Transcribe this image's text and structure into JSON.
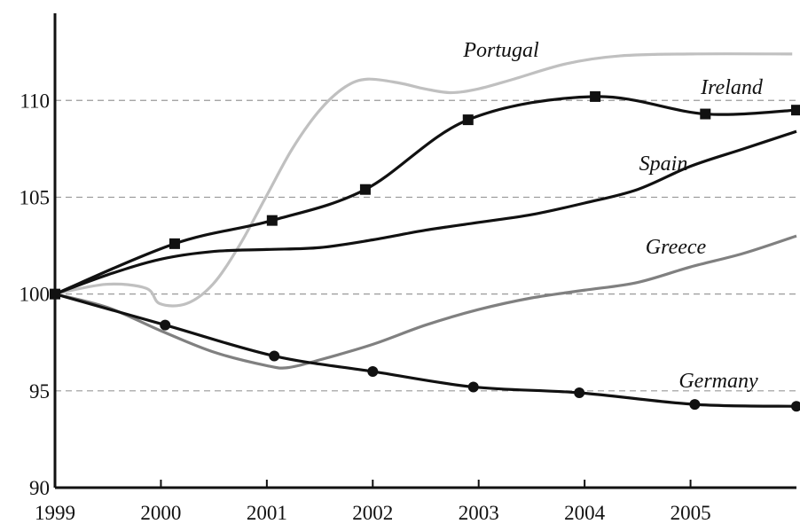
{
  "chart_data": {
    "type": "line",
    "xlim": [
      1999,
      2006
    ],
    "ylim": [
      90,
      114.5
    ],
    "xticks": [
      1999,
      2000,
      2001,
      2002,
      2003,
      2004,
      2005
    ],
    "yticks": [
      90,
      95,
      100,
      105,
      110
    ],
    "grid": true,
    "series": [
      {
        "name": "Portugal",
        "color": "#c0c0c0",
        "x": [
          1999,
          1999.48,
          1999.86,
          1999.99,
          2000.24,
          2000.49,
          2000.74,
          2000.99,
          2001.24,
          2001.5,
          2001.74,
          2001.95,
          2002.25,
          2002.49,
          2002.74,
          2003,
          2003.33,
          2003.83,
          2004.33,
          2005,
          2005.96
        ],
        "values": [
          100,
          100.5,
          100.3,
          99.5,
          99.5,
          100.5,
          102.5,
          105,
          107.5,
          109.5,
          110.7,
          111.1,
          110.9,
          110.6,
          110.4,
          110.6,
          111.1,
          111.9,
          112.3,
          112.4,
          112.4
        ]
      },
      {
        "name": "Ireland",
        "color": "#111111",
        "marker": "square",
        "x": [
          1999,
          2000.13,
          2001.05,
          2001.93,
          2002.9,
          2004.1,
          2005.14,
          2006
        ],
        "values": [
          100,
          102.6,
          103.8,
          105.4,
          109,
          110.2,
          109.3,
          109.5
        ]
      },
      {
        "name": "Spain",
        "color": "#111111",
        "x": [
          1999,
          1999.5,
          2000,
          2000.5,
          2001,
          2001.5,
          2002,
          2002.5,
          2003,
          2003.5,
          2004,
          2004.5,
          2005,
          2005.5,
          2006
        ],
        "values": [
          100,
          101,
          101.8,
          102.2,
          102.3,
          102.4,
          102.8,
          103.3,
          103.7,
          104.1,
          104.7,
          105.4,
          106.6,
          107.5,
          108.4
        ]
      },
      {
        "name": "Greece",
        "color": "#808080",
        "x": [
          1999,
          1999.5,
          2000,
          2000.5,
          2001,
          2001.2,
          2001.5,
          2002,
          2002.5,
          2003,
          2003.5,
          2004,
          2004.5,
          2005,
          2005.5,
          2006
        ],
        "values": [
          100,
          99.3,
          98.1,
          97,
          96.3,
          96.2,
          96.6,
          97.4,
          98.4,
          99.2,
          99.8,
          100.2,
          100.6,
          101.4,
          102.1,
          103
        ]
      },
      {
        "name": "Germany",
        "color": "#111111",
        "marker": "circle",
        "x": [
          1999,
          2000.04,
          2001.07,
          2002,
          2002.95,
          2003.95,
          2005.04,
          2006
        ],
        "values": [
          100,
          98.4,
          96.8,
          96,
          95.2,
          94.9,
          94.3,
          94.2
        ]
      }
    ]
  }
}
